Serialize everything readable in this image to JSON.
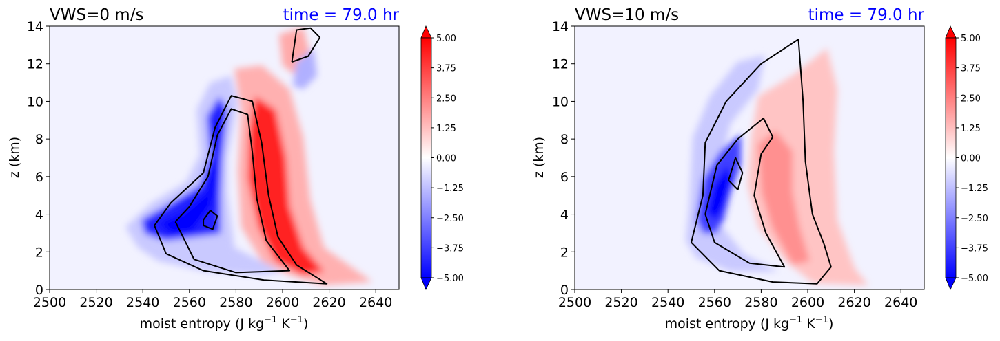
{
  "colors": {
    "positive": "#ff0000",
    "negative": "#0000ff",
    "contour": "#000000",
    "time_text": "#0000ff"
  },
  "chart_data": [
    {
      "type": "contour",
      "title": "VWS=0 m/s",
      "annotation": "time = 79.0 hr",
      "xlabel": "moist entropy (J kg",
      "xlabel_sup1": "−1",
      "xlabel_mid": " K",
      "xlabel_sup2": "−1",
      "xlabel_end": ")",
      "ylabel": "z (km)",
      "xlim": [
        2500,
        2650
      ],
      "ylim": [
        0,
        14
      ],
      "xticks": [
        "2500",
        "2520",
        "2540",
        "2560",
        "2580",
        "2600",
        "2620",
        "2640"
      ],
      "yticks": [
        "0",
        "2",
        "4",
        "6",
        "8",
        "10",
        "12",
        "14"
      ],
      "colorbar": {
        "range": [
          -5.0,
          5.0
        ],
        "extend": "both",
        "ticks": [
          "5.00",
          "3.75",
          "2.50",
          "1.25",
          "0.00",
          "−1.25",
          "−2.50",
          "−3.75",
          "−5.00"
        ]
      },
      "contours": [
        [
          [
            2545,
            3.4
          ],
          [
            2552,
            4.6
          ],
          [
            2566,
            6.2
          ],
          [
            2571,
            8.6
          ],
          [
            2578,
            10.3
          ],
          [
            2587,
            10.0
          ],
          [
            2591,
            7.8
          ],
          [
            2594,
            5.0
          ],
          [
            2598,
            2.8
          ],
          [
            2606,
            1.3
          ],
          [
            2619,
            0.3
          ],
          [
            2592,
            0.5
          ],
          [
            2566,
            1.0
          ],
          [
            2550,
            1.9
          ],
          [
            2545,
            3.4
          ]
        ],
        [
          [
            2554,
            3.6
          ],
          [
            2560,
            4.4
          ],
          [
            2568,
            6.0
          ],
          [
            2572,
            8.2
          ],
          [
            2578,
            9.6
          ],
          [
            2585,
            9.3
          ],
          [
            2587,
            7.3
          ],
          [
            2589,
            4.8
          ],
          [
            2593,
            2.6
          ],
          [
            2603,
            1.0
          ],
          [
            2580,
            0.9
          ],
          [
            2562,
            1.6
          ],
          [
            2554,
            3.6
          ]
        ],
        [
          [
            2566,
            3.7
          ],
          [
            2569,
            4.2
          ],
          [
            2572,
            3.9
          ],
          [
            2570,
            3.2
          ],
          [
            2566,
            3.4
          ],
          [
            2566,
            3.7
          ]
        ],
        [
          [
            2604,
            12.1
          ],
          [
            2606,
            13.8
          ],
          [
            2612,
            13.9
          ],
          [
            2616,
            13.4
          ],
          [
            2611,
            12.4
          ],
          [
            2604,
            12.1
          ]
        ]
      ]
    },
    {
      "type": "contour",
      "title": "VWS=10 m/s",
      "annotation": "time = 79.0 hr",
      "xlabel": "moist entropy (J kg",
      "xlabel_sup1": "−1",
      "xlabel_mid": " K",
      "xlabel_sup2": "−1",
      "xlabel_end": ")",
      "ylabel": "z (km)",
      "xlim": [
        2500,
        2650
      ],
      "ylim": [
        0,
        14
      ],
      "xticks": [
        "2500",
        "2520",
        "2540",
        "2560",
        "2580",
        "2600",
        "2620",
        "2640"
      ],
      "yticks": [
        "0",
        "2",
        "4",
        "6",
        "8",
        "10",
        "12",
        "14"
      ],
      "colorbar": {
        "range": [
          -5.0,
          5.0
        ],
        "extend": "both",
        "ticks": [
          "5.00",
          "3.75",
          "2.50",
          "1.25",
          "0.00",
          "−1.25",
          "−2.50",
          "−3.75",
          "−5.00"
        ]
      },
      "contours": [
        [
          [
            2550,
            2.5
          ],
          [
            2555,
            5.0
          ],
          [
            2556,
            7.8
          ],
          [
            2565,
            10.0
          ],
          [
            2580,
            12.0
          ],
          [
            2596,
            13.3
          ],
          [
            2598,
            10.0
          ],
          [
            2599,
            6.8
          ],
          [
            2602,
            4.0
          ],
          [
            2607,
            2.4
          ],
          [
            2610,
            1.2
          ],
          [
            2604,
            0.3
          ],
          [
            2585,
            0.4
          ],
          [
            2562,
            1.0
          ],
          [
            2550,
            2.5
          ]
        ],
        [
          [
            2556,
            4.0
          ],
          [
            2561,
            6.6
          ],
          [
            2570,
            8.0
          ],
          [
            2581,
            9.1
          ],
          [
            2585,
            8.1
          ],
          [
            2580,
            7.2
          ],
          [
            2577,
            5.0
          ],
          [
            2582,
            3.0
          ],
          [
            2590,
            1.2
          ],
          [
            2575,
            1.4
          ],
          [
            2560,
            2.5
          ],
          [
            2556,
            4.0
          ]
        ],
        [
          [
            2566,
            5.8
          ],
          [
            2569,
            7.0
          ],
          [
            2572,
            6.2
          ],
          [
            2570,
            5.3
          ],
          [
            2566,
            5.8
          ]
        ]
      ]
    }
  ]
}
